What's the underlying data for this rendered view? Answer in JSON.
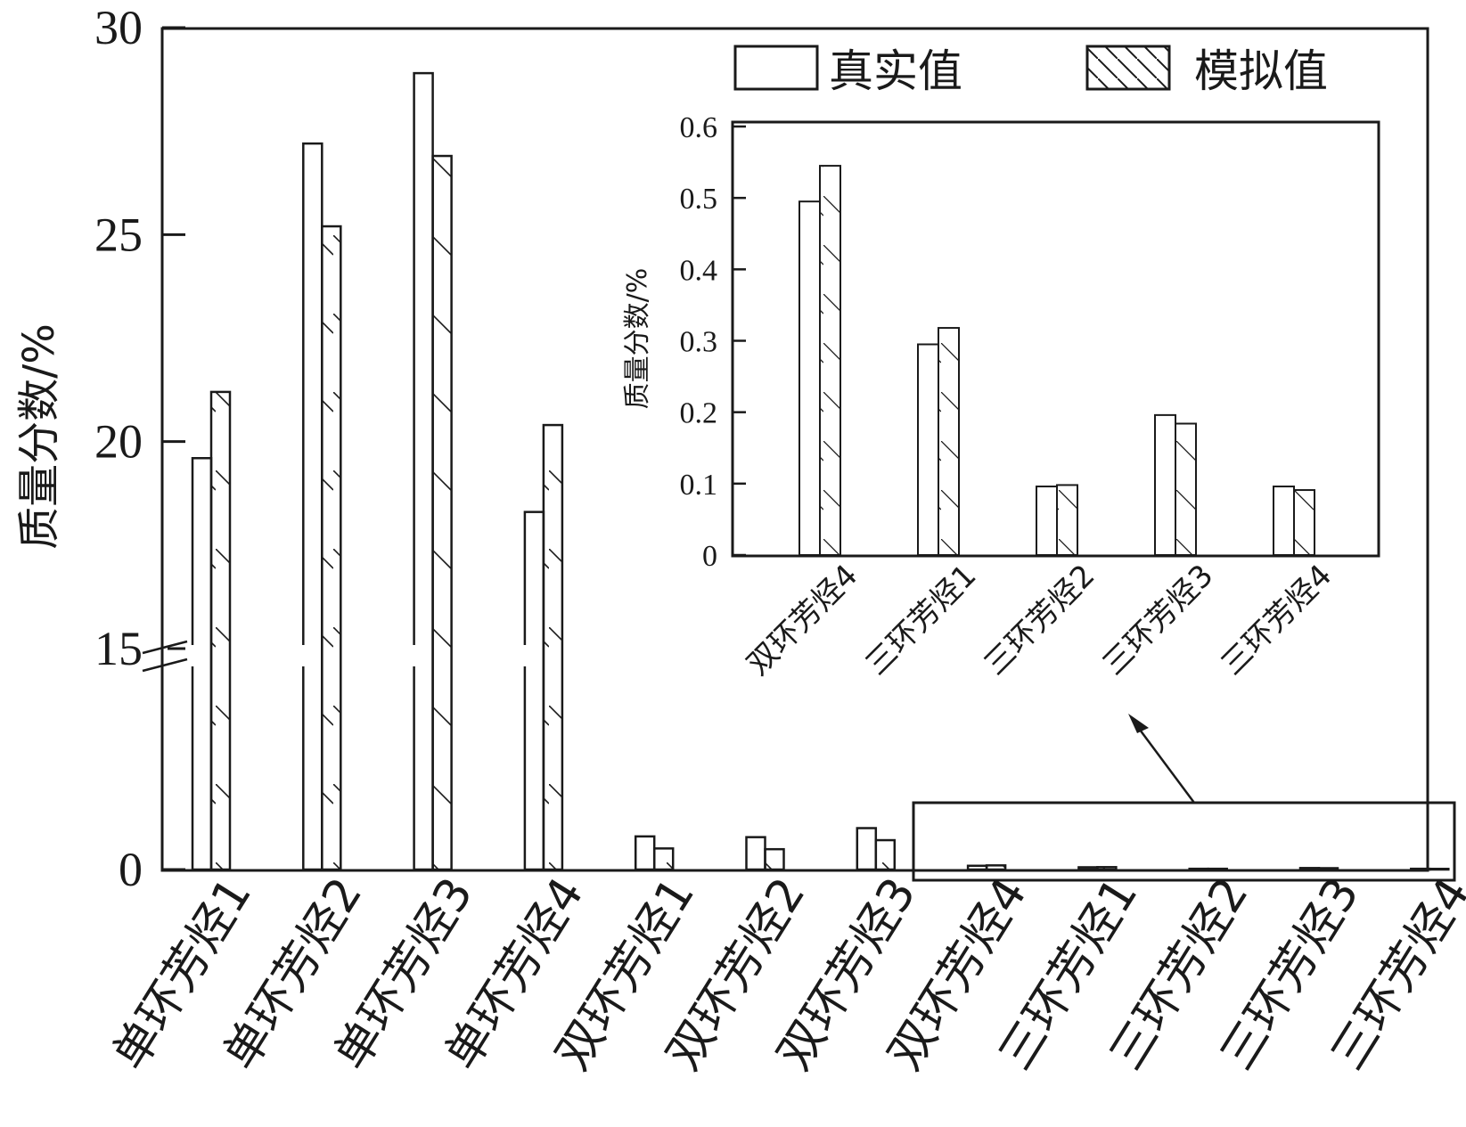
{
  "legend": {
    "items": [
      {
        "label": "真实值",
        "pattern": "plain"
      },
      {
        "label": "模拟值",
        "pattern": "hatched"
      }
    ],
    "placement": "top-right"
  },
  "colors": {
    "stroke": "#1a1a1a",
    "background": "#ffffff"
  },
  "chart_data": [
    {
      "type": "bar",
      "title": "",
      "xlabel": "",
      "ylabel": "质量分数/%",
      "ylim": [
        0,
        30
      ],
      "yticks": [
        "0",
        "15",
        "20",
        "25",
        "30"
      ],
      "axis_break": "0-15",
      "grid": false,
      "categories": [
        "单环芳烃1",
        "单环芳烃2",
        "单环芳烃3",
        "单环芳烃4",
        "双环芳烃1",
        "双环芳烃2",
        "双环芳烃3",
        "双环芳烃4",
        "三环芳烃1",
        "三环芳烃2",
        "三环芳烃3",
        "三环芳烃4"
      ],
      "series": [
        {
          "name": "真实值",
          "values": [
            19.6,
            27.2,
            28.9,
            18.3,
            4.4,
            4.3,
            5.5,
            0.5,
            0.3,
            0.1,
            0.2,
            0.1
          ]
        },
        {
          "name": "模拟值",
          "values": [
            21.2,
            25.2,
            26.9,
            20.4,
            2.8,
            2.7,
            3.9,
            0.55,
            0.32,
            0.1,
            0.18,
            0.09
          ]
        }
      ]
    },
    {
      "type": "bar",
      "title": "",
      "xlabel": "",
      "ylabel": "质量分数/%",
      "ylim": [
        0,
        0.6
      ],
      "yticks": [
        "0",
        "0.1",
        "0.2",
        "0.3",
        "0.4",
        "0.5",
        "0.6"
      ],
      "grid": false,
      "categories": [
        "双环芳烃4",
        "三环芳烃1",
        "三环芳烃2",
        "三环芳烃3",
        "三环芳烃4"
      ],
      "series": [
        {
          "name": "真实值",
          "values": [
            0.495,
            0.295,
            0.096,
            0.196,
            0.096
          ]
        },
        {
          "name": "模拟值",
          "values": [
            0.545,
            0.318,
            0.098,
            0.184,
            0.091
          ]
        }
      ]
    }
  ]
}
